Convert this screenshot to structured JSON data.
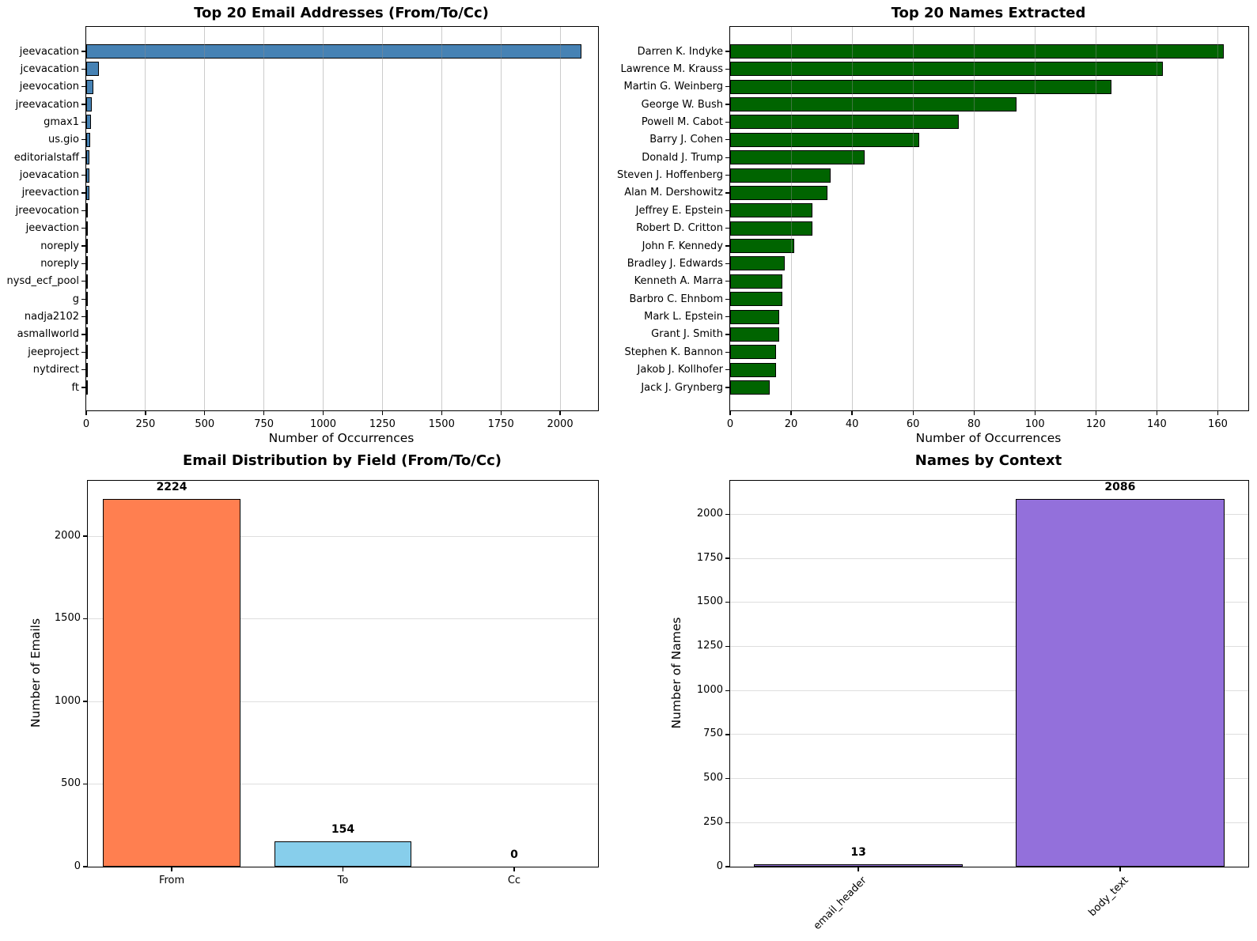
{
  "figure": {
    "background": "#ffffff"
  },
  "chart_data": [
    {
      "type": "bar",
      "orientation": "horizontal",
      "title": "Top 20 Email Addresses (From/To/Cc)",
      "xlabel": "Number of Occurrences",
      "ylabel": "",
      "categories": [
        "jeevacation",
        "jcevacation",
        "jeevocation",
        "jreevacation",
        "gmax1",
        "us.gio",
        "editorialstaff",
        "joevacation",
        "jreevaction",
        "jreevocation",
        "jeevaction",
        "noreply",
        "noreply",
        "nysd_ecf_pool",
        "g",
        "nadja2102",
        "asmallworld",
        "jeeproject",
        "nytdirect",
        "ft"
      ],
      "values": [
        2090,
        52,
        30,
        24,
        21,
        18,
        14,
        13,
        13,
        8,
        5,
        4,
        4,
        3,
        3,
        3,
        3,
        2,
        2,
        2
      ],
      "bar_color": "#4682b4",
      "bar_edge_color": "#000000",
      "xlim": [
        0,
        2160
      ],
      "xticks": [
        0,
        250,
        500,
        750,
        1000,
        1250,
        1500,
        1750,
        2000
      ],
      "grid": "vertical",
      "legend": "none"
    },
    {
      "type": "bar",
      "orientation": "horizontal",
      "title": "Top 20 Names Extracted",
      "xlabel": "Number of Occurrences",
      "ylabel": "",
      "categories": [
        "Darren K. Indyke",
        "Lawrence M. Krauss",
        "Martin G. Weinberg",
        "George W. Bush",
        "Powell M. Cabot",
        "Barry J. Cohen",
        "Donald J. Trump",
        "Steven J. Hoffenberg",
        "Alan M. Dershowitz",
        "Jeffrey E. Epstein",
        "Robert D. Critton",
        "John F. Kennedy",
        "Bradley J. Edwards",
        "Kenneth A. Marra",
        "Barbro C. Ehnbom",
        "Mark L. Epstein",
        "Grant J. Smith",
        "Stephen K. Bannon",
        "Jakob J. Kollhofer",
        "Jack J. Grynberg"
      ],
      "values": [
        162,
        142,
        125,
        94,
        75,
        62,
        44,
        33,
        32,
        27,
        27,
        21,
        18,
        17,
        17,
        16,
        16,
        15,
        15,
        13
      ],
      "bar_color": "#006400",
      "bar_edge_color": "#000000",
      "xlim": [
        0,
        170
      ],
      "xticks": [
        0,
        20,
        40,
        60,
        80,
        100,
        120,
        140,
        160
      ],
      "grid": "vertical",
      "legend": "none"
    },
    {
      "type": "bar",
      "orientation": "vertical",
      "title": "Email Distribution by Field (From/To/Cc)",
      "xlabel": "",
      "ylabel": "Number of Emails",
      "categories": [
        "From",
        "To",
        "Cc"
      ],
      "values": [
        2224,
        154,
        0
      ],
      "value_labels": [
        "2224",
        "154",
        "0"
      ],
      "bar_colors": [
        "#ff7f50",
        "#87ceeb",
        "#87ceeb"
      ],
      "bar_edge_color": "#000000",
      "ylim": [
        0,
        2335
      ],
      "yticks": [
        0,
        500,
        1000,
        1500,
        2000
      ],
      "grid": "horizontal",
      "xtick_rotation": 0,
      "legend": "none"
    },
    {
      "type": "bar",
      "orientation": "vertical",
      "title": "Names by Context",
      "xlabel": "",
      "ylabel": "Number of Names",
      "categories": [
        "email_header",
        "body_text"
      ],
      "values": [
        13,
        2086
      ],
      "value_labels": [
        "13",
        "2086"
      ],
      "bar_colors": [
        "#9370db",
        "#9370db"
      ],
      "bar_edge_color": "#000000",
      "ylim": [
        0,
        2190
      ],
      "yticks": [
        0,
        250,
        500,
        750,
        1000,
        1250,
        1500,
        1750,
        2000
      ],
      "grid": "horizontal",
      "xtick_rotation": 45,
      "legend": "none"
    }
  ]
}
